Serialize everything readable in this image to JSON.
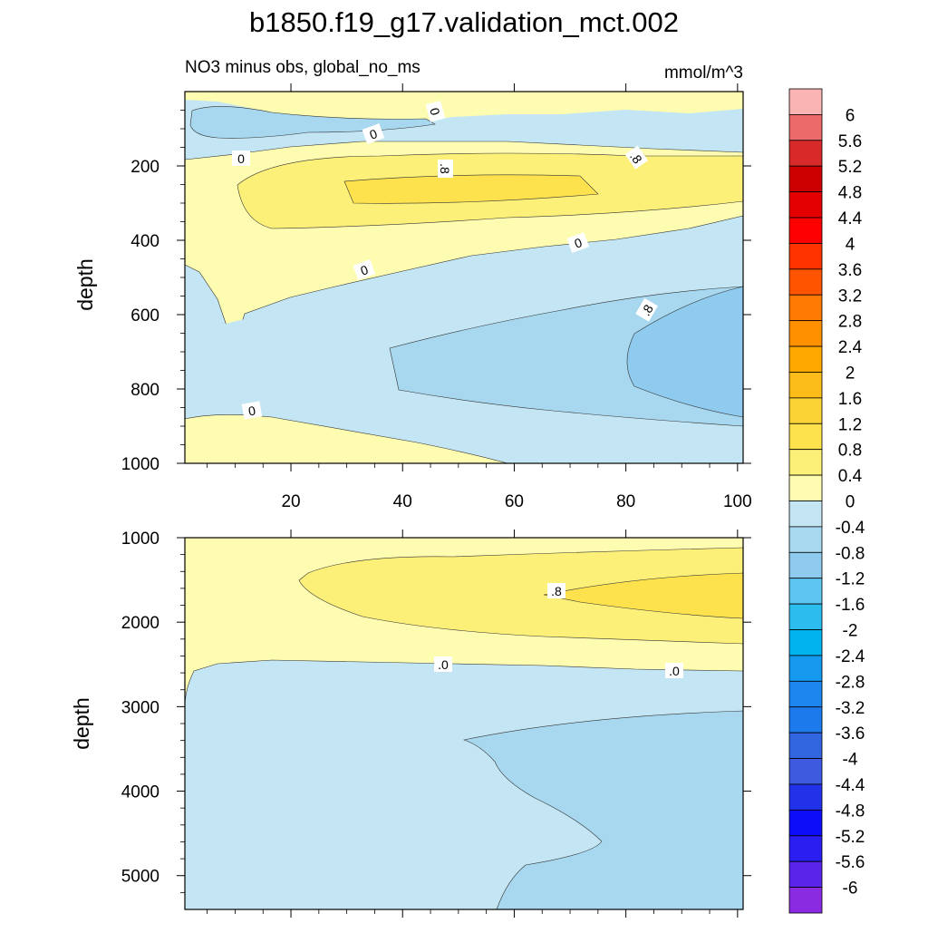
{
  "title": "b1850.f19_g17.validation_mct.002",
  "colorbar": {
    "levels": [
      "6",
      "5.6",
      "5.2",
      "4.8",
      "4.4",
      "4",
      "3.6",
      "3.2",
      "2.8",
      "2.4",
      "2",
      "1.6",
      "1.2",
      "0.8",
      "0.4",
      "0",
      "-0.4",
      "-0.8",
      "-1.2",
      "-1.6",
      "-2",
      "-2.4",
      "-2.8",
      "-3.2",
      "-3.6",
      "-4",
      "-4.4",
      "-4.8",
      "-5.2",
      "-5.6",
      "-6"
    ],
    "colors": [
      "#fbb4b4",
      "#ec6a6a",
      "#d92a2a",
      "#cc0000",
      "#e40000",
      "#ff0000",
      "#ff3300",
      "#ff5500",
      "#ff7a00",
      "#ff9000",
      "#ffa800",
      "#fcbc1a",
      "#fcd335",
      "#fde24d",
      "#fdf078",
      "#fefcb0",
      "#c4e6f4",
      "#a8d8ef",
      "#8ecbee",
      "#5ec4f2",
      "#2cbdee",
      "#00b2ee",
      "#1599ee",
      "#1c86ee",
      "#1d7aed",
      "#3166e0",
      "#3e5be0",
      "#2232e8",
      "#0d0df8",
      "#2a1ff0",
      "#5a24ea",
      "#8a2be2"
    ]
  },
  "chart_data": [
    {
      "type": "heatmap",
      "subtitle": "NO3 minus obs, global_no_ms",
      "units": "mmol/m^3",
      "xlabel": "",
      "ylabel": "depth",
      "xlim": [
        1,
        101
      ],
      "ylim": [
        0,
        1000
      ],
      "y_reversed": true,
      "xticks": [
        20,
        40,
        60,
        80,
        100
      ],
      "yticks": [
        200,
        400,
        600,
        800,
        1000
      ],
      "contour_labels": [
        "0",
        "0",
        "0",
        ".8",
        ".8",
        "0",
        "0",
        ".8",
        "0"
      ],
      "regions": [
        {
          "value_range": [
            0,
            0.4
          ],
          "color": "#fefcb0",
          "depth_range": [
            0,
            40
          ]
        },
        {
          "value_range": [
            -0.4,
            0
          ],
          "color": "#c4e6f4",
          "depth_range": [
            40,
            160
          ]
        },
        {
          "value_range": [
            -0.8,
            -0.4
          ],
          "color": "#a8d8ef",
          "depth_range": [
            50,
            130
          ]
        },
        {
          "value_range": [
            0,
            0.4
          ],
          "color": "#fefcb0",
          "depth_range": [
            160,
            430
          ]
        },
        {
          "value_range": [
            0.4,
            0.8
          ],
          "color": "#fdf078",
          "depth_range": [
            180,
            330
          ]
        },
        {
          "value_range": [
            0.8,
            1.2
          ],
          "color": "#fde24d",
          "depth_range": [
            200,
            270
          ]
        },
        {
          "value_range": [
            -0.4,
            0
          ],
          "color": "#c4e6f4",
          "depth_range": [
            360,
            960
          ]
        },
        {
          "value_range": [
            -0.8,
            -0.4
          ],
          "color": "#a8d8ef",
          "depth_range": [
            500,
            860
          ]
        },
        {
          "value_range": [
            -1.2,
            -0.8
          ],
          "color": "#8ecbee",
          "depth_range": [
            600,
            860
          ]
        },
        {
          "value_range": [
            0,
            0.4
          ],
          "color": "#fefcb0",
          "depth_range": [
            850,
            1000
          ]
        }
      ]
    },
    {
      "type": "heatmap",
      "xlabel": "",
      "ylabel": "depth",
      "xlim": [
        1,
        101
      ],
      "ylim": [
        1000,
        5400
      ],
      "y_reversed": true,
      "yticks": [
        1000,
        2000,
        3000,
        4000,
        5000
      ],
      "contour_labels": [
        ".8",
        ".0",
        ".0"
      ],
      "regions": [
        {
          "value_range": [
            0,
            0.4
          ],
          "color": "#fefcb0",
          "depth_range": [
            1000,
            2500
          ]
        },
        {
          "value_range": [
            0.4,
            0.8
          ],
          "color": "#fdf078",
          "depth_range": [
            1250,
            2250
          ]
        },
        {
          "value_range": [
            0.8,
            1.2
          ],
          "color": "#fde24d",
          "depth_range": [
            1400,
            1900
          ]
        },
        {
          "value_range": [
            -0.4,
            0
          ],
          "color": "#c4e6f4",
          "depth_range": [
            2450,
            5400
          ]
        },
        {
          "value_range": [
            -0.8,
            -0.4
          ],
          "color": "#a8d8ef",
          "depth_range": [
            3100,
            5400
          ]
        }
      ]
    }
  ]
}
